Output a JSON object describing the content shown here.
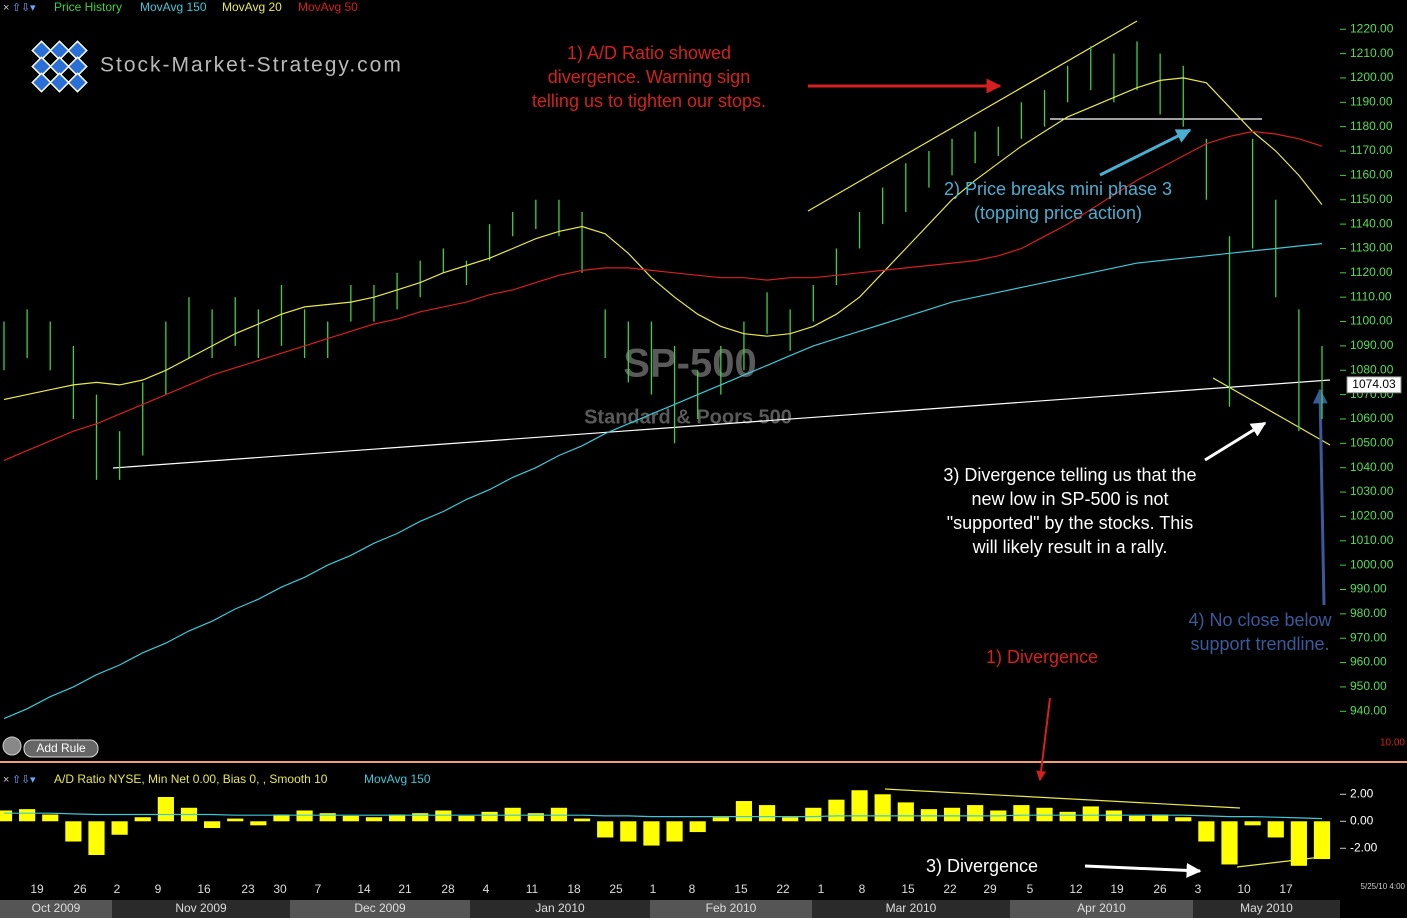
{
  "toolbar": {
    "button": "Add Rule"
  },
  "watermark": "Stock-Market-Strategy.com",
  "annotations": {
    "ad_warning": [
      "1) A/D Ratio showed",
      "divergence. Warning sign",
      "telling us to tighten our stops."
    ],
    "price_break": [
      "2) Price breaks mini phase 3",
      "(topping price action)"
    ],
    "new_low": [
      "3) Divergence telling us that the",
      "new low in SP-500 is not",
      "\"supported\" by the stocks. This",
      "will likely result in a rally."
    ],
    "no_close": [
      "4) No close below",
      "support trendline."
    ],
    "divergence_1": "1) Divergence",
    "divergence_3": "3) Divergence"
  },
  "footer": {
    "timestamp": "5/25/10 4:00",
    "alert_label": "10.00"
  },
  "chart_data": [
    {
      "type": "ohlc",
      "title": "SP-500",
      "subtitle": "Standard & Poors 500",
      "series": [
        {
          "name": "Price History",
          "color": "#3fd13f",
          "high": [
            1100,
            1105,
            1100,
            1090,
            1070,
            1055,
            1075,
            1100,
            1110,
            1105,
            1110,
            1105,
            1115,
            1105,
            1100,
            1115,
            1115,
            1120,
            1125,
            1130,
            1125,
            1140,
            1145,
            1150,
            1150,
            1145,
            1105,
            1100,
            1100,
            1090,
            1080,
            1090,
            1100,
            1112,
            1105,
            1115,
            1130,
            1145,
            1155,
            1165,
            1170,
            1175,
            1178,
            1180,
            1190,
            1195,
            1205,
            1213,
            1210,
            1215,
            1210,
            1205,
            1175,
            1135,
            1175,
            1150,
            1105,
            1090
          ],
          "low": [
            1080,
            1085,
            1080,
            1060,
            1035,
            1035,
            1045,
            1070,
            1085,
            1085,
            1090,
            1085,
            1090,
            1085,
            1085,
            1100,
            1100,
            1105,
            1110,
            1120,
            1115,
            1125,
            1135,
            1138,
            1135,
            1120,
            1085,
            1075,
            1070,
            1050,
            1060,
            1070,
            1080,
            1095,
            1088,
            1100,
            1115,
            1130,
            1140,
            1145,
            1155,
            1160,
            1165,
            1168,
            1175,
            1180,
            1190,
            1195,
            1190,
            1195,
            1185,
            1180,
            1150,
            1065,
            1130,
            1110,
            1055,
            1060
          ]
        },
        {
          "name": "MovAvg 150",
          "color": "#3ec8d8",
          "values": [
            937,
            941,
            946,
            950,
            955,
            959,
            964,
            968,
            973,
            977,
            982,
            986,
            991,
            995,
            1000,
            1004,
            1009,
            1013,
            1018,
            1022,
            1027,
            1031,
            1036,
            1040,
            1045,
            1049,
            1054,
            1058,
            1062,
            1066,
            1070,
            1074,
            1078,
            1082,
            1086,
            1090,
            1093,
            1096,
            1099,
            1102,
            1105,
            1108,
            1110,
            1112,
            1114,
            1116,
            1118,
            1120,
            1122,
            1124,
            1125,
            1126,
            1127,
            1128,
            1129,
            1130,
            1131,
            1132
          ]
        },
        {
          "name": "MovAvg 20",
          "color": "#e8e84a",
          "values": [
            1068,
            1070,
            1072,
            1074,
            1075,
            1074,
            1076,
            1080,
            1085,
            1090,
            1095,
            1099,
            1103,
            1106,
            1107,
            1108,
            1110,
            1113,
            1116,
            1120,
            1123,
            1126,
            1130,
            1134,
            1137,
            1139,
            1136,
            1128,
            1118,
            1110,
            1103,
            1098,
            1095,
            1094,
            1095,
            1098,
            1103,
            1110,
            1120,
            1130,
            1140,
            1150,
            1158,
            1165,
            1172,
            1178,
            1184,
            1188,
            1192,
            1196,
            1199,
            1200,
            1198,
            1188,
            1178,
            1170,
            1160,
            1148
          ]
        },
        {
          "name": "MovAvg 50",
          "color": "#d42020",
          "values": [
            1043,
            1047,
            1051,
            1055,
            1058,
            1062,
            1066,
            1070,
            1074,
            1078,
            1081,
            1084,
            1087,
            1090,
            1093,
            1096,
            1099,
            1101,
            1104,
            1106,
            1108,
            1111,
            1113,
            1116,
            1119,
            1121,
            1122,
            1122,
            1121,
            1120,
            1119,
            1118,
            1118,
            1117,
            1118,
            1118,
            1119,
            1120,
            1121,
            1122,
            1123,
            1124,
            1125,
            1127,
            1130,
            1135,
            1140,
            1146,
            1152,
            1158,
            1163,
            1168,
            1173,
            1176,
            1178,
            1177,
            1175,
            1172
          ]
        }
      ],
      "last_price": 1074.03,
      "ylim": [
        920,
        1232
      ],
      "yticks": [
        {
          "value": 940,
          "label": "940.00"
        },
        {
          "value": 950,
          "label": "950.00"
        },
        {
          "value": 960,
          "label": "960.00"
        },
        {
          "value": 970,
          "label": "970.00"
        },
        {
          "value": 980,
          "label": "980.00"
        },
        {
          "value": 990,
          "label": "990.00"
        },
        {
          "value": 1000,
          "label": "1000.00"
        },
        {
          "value": 1010,
          "label": "1010.00"
        },
        {
          "value": 1020,
          "label": "1020.00"
        },
        {
          "value": 1030,
          "label": "1030.00"
        },
        {
          "value": 1040,
          "label": "1040.00"
        },
        {
          "value": 1050,
          "label": "1050.00"
        },
        {
          "value": 1060,
          "label": "1060.00"
        },
        {
          "value": 1070,
          "label": "1070.00"
        },
        {
          "value": 1080,
          "label": "1080.00"
        },
        {
          "value": 1090,
          "label": "1090.00"
        },
        {
          "value": 1100,
          "label": "1100.00"
        },
        {
          "value": 1110,
          "label": "1110.00"
        },
        {
          "value": 1120,
          "label": "1120.00"
        },
        {
          "value": 1130,
          "label": "1130.00"
        },
        {
          "value": 1140,
          "label": "1140.00"
        },
        {
          "value": 1150,
          "label": "1150.00"
        },
        {
          "value": 1160,
          "label": "1160.00"
        },
        {
          "value": 1170,
          "label": "1170.00"
        },
        {
          "value": 1180,
          "label": "1180.00"
        },
        {
          "value": 1190,
          "label": "1190.00"
        },
        {
          "value": 1200,
          "label": "1200.00"
        },
        {
          "value": 1210,
          "label": "1210.00"
        },
        {
          "value": 1220,
          "label": "1220.00"
        }
      ],
      "xtick_labels": [
        "19",
        "26",
        "2",
        "9",
        "16",
        "23",
        "30",
        "7",
        "14",
        "21",
        "28",
        "4",
        "11",
        "18",
        "25",
        "1",
        "8",
        "15",
        "22",
        "1",
        "8",
        "15",
        "22",
        "29",
        "5",
        "12",
        "19",
        "26",
        "3",
        "10",
        "17"
      ],
      "month_labels": [
        "Oct 2009",
        "Nov 2009",
        "Dec 2009",
        "Jan 2010",
        "Feb 2010",
        "Mar 2010",
        "Apr 2010",
        "May 2010"
      ]
    },
    {
      "type": "bar",
      "title": "A/D Ratio NYSE, Min Net 0.00, Bias 0, , Smooth 10",
      "series": [
        {
          "color": "#ffff00",
          "values": [
            0.8,
            0.9,
            0.5,
            -1.5,
            -2.5,
            -1.0,
            0.3,
            1.8,
            1.0,
            -0.5,
            0.2,
            -0.3,
            0.5,
            0.8,
            0.6,
            0.4,
            0.3,
            0.5,
            0.6,
            0.8,
            0.4,
            0.7,
            1.0,
            0.6,
            1.0,
            0.2,
            -1.2,
            -1.5,
            -1.8,
            -1.5,
            -0.8,
            0.3,
            1.5,
            1.2,
            0.3,
            1.0,
            1.6,
            2.3,
            2.0,
            1.4,
            0.9,
            1.0,
            1.2,
            0.8,
            1.2,
            1.0,
            0.7,
            1.1,
            0.8,
            0.4,
            0.5,
            0.3,
            -1.5,
            -3.2,
            -0.3,
            -1.2,
            -3.3,
            -2.8
          ]
        },
        {
          "name": "MovAvg 150",
          "color": "#3ec8d8",
          "values": [
            0.6,
            0.6,
            0.6,
            0.55,
            0.5,
            0.5,
            0.5,
            0.5,
            0.5,
            0.5,
            0.45,
            0.45,
            0.45,
            0.45,
            0.45,
            0.45,
            0.45,
            0.45,
            0.45,
            0.45,
            0.45,
            0.45,
            0.45,
            0.45,
            0.45,
            0.45,
            0.4,
            0.4,
            0.35,
            0.35,
            0.35,
            0.35,
            0.35,
            0.35,
            0.35,
            0.35,
            0.4,
            0.4,
            0.4,
            0.4,
            0.4,
            0.4,
            0.4,
            0.4,
            0.45,
            0.45,
            0.45,
            0.45,
            0.45,
            0.45,
            0.45,
            0.45,
            0.4,
            0.35,
            0.35,
            0.3,
            0.25,
            0.2
          ]
        }
      ],
      "ylim": [
        -4.5,
        3.8
      ],
      "yticks": [
        {
          "value": 2,
          "label": "2.00"
        },
        {
          "value": 0,
          "label": "0.00"
        },
        {
          "value": -2,
          "label": "-2.00"
        }
      ]
    }
  ]
}
